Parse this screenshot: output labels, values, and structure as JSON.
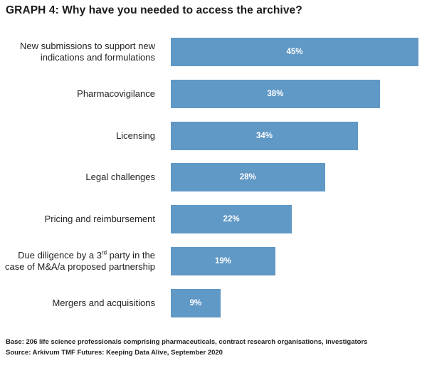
{
  "chart_data": {
    "type": "bar",
    "orientation": "horizontal",
    "title": "GRAPH 4: Why have you needed to access the archive?",
    "categories": [
      {
        "pre": "New submissions to support new indications and formulations",
        "sup": "",
        "post": ""
      },
      {
        "pre": "Pharmacovigilance",
        "sup": "",
        "post": ""
      },
      {
        "pre": "Licensing",
        "sup": "",
        "post": ""
      },
      {
        "pre": "Legal challenges",
        "sup": "",
        "post": ""
      },
      {
        "pre": "Pricing and reimbursement",
        "sup": "",
        "post": ""
      },
      {
        "pre": "Due diligence by a 3",
        "sup": "rd",
        "post": " party in the case of M&A/a proposed partnership"
      },
      {
        "pre": "Mergers and acquisitions",
        "sup": "",
        "post": ""
      }
    ],
    "values": [
      45,
      38,
      34,
      28,
      22,
      19,
      9
    ],
    "value_labels": [
      "45%",
      "38%",
      "34%",
      "28%",
      "22%",
      "19%",
      "9%"
    ],
    "unit": "%",
    "xlim": [
      0,
      45
    ],
    "bar_color": "#6098c6",
    "grid": false,
    "legend": "none"
  },
  "footnotes": {
    "base": "Base: 206 life science professionals comprising pharmaceuticals, contract research organisations, investigators",
    "source": "Source: Arkivum TMF Futures: Keeping Data Alive, September 2020"
  }
}
